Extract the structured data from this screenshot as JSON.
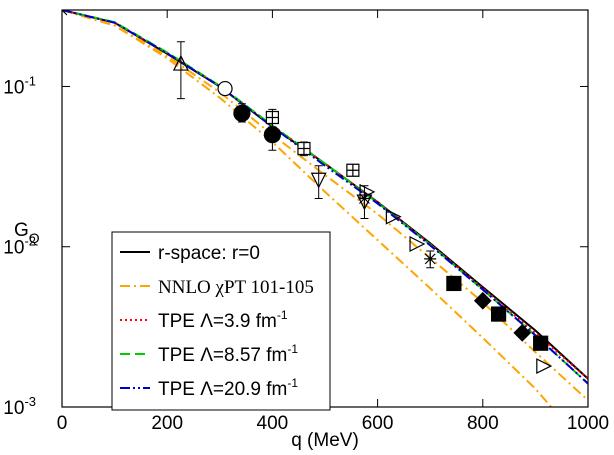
{
  "chart_data": {
    "type": "line",
    "x_label": "q (MeV)",
    "y_label": "G",
    "y_label_sub": "Q",
    "xlim": [
      0,
      1000
    ],
    "ylim": [
      0.001,
      0.3
    ],
    "log_y": true,
    "xticks": [
      0,
      200,
      400,
      600,
      800,
      1000
    ],
    "yticks": [
      {
        "value": 0.001,
        "label": "10",
        "exponent": "-3"
      },
      {
        "value": 0.01,
        "label": "10",
        "exponent": "-2"
      },
      {
        "value": 0.1,
        "label": "10",
        "exponent": "-1"
      }
    ],
    "series": [
      {
        "name": "r-space: r=0",
        "color": "#000000",
        "dash": "solid",
        "x": [
          0,
          100,
          200,
          300,
          400,
          500,
          600,
          700,
          800,
          900,
          1000
        ],
        "values": [
          0.3,
          0.25,
          0.16,
          0.1,
          0.056,
          0.033,
          0.019,
          0.0105,
          0.0056,
          0.003,
          0.0015
        ]
      },
      {
        "name": "NNLO χPT 101-105",
        "color": "#ffa500",
        "dash": "dashdot",
        "x": [
          0,
          100,
          200,
          300,
          400,
          500,
          600,
          700,
          800,
          900,
          1000
        ],
        "values": [
          0.3,
          0.24,
          0.155,
          0.092,
          0.05,
          0.028,
          0.016,
          0.0085,
          0.0045,
          0.0022,
          0.0011
        ]
      },
      {
        "name": "NNLO χPT 101-105",
        "color": "#ffa500",
        "dash": "dashdot",
        "legend": false,
        "x": [
          0,
          100,
          200,
          300,
          400,
          500,
          600,
          700,
          800,
          900,
          930
        ],
        "values": [
          0.3,
          0.24,
          0.15,
          0.085,
          0.045,
          0.022,
          0.011,
          0.0055,
          0.0027,
          0.0013,
          0.001
        ]
      },
      {
        "name": "TPE Λ=3.9 fm",
        "name_exponent": "-1",
        "color": "#ff0000",
        "dash": "dotted",
        "x": [
          0,
          100,
          200,
          300,
          400,
          500,
          600,
          700,
          800,
          900,
          1000
        ],
        "values": [
          0.3,
          0.25,
          0.162,
          0.1,
          0.057,
          0.033,
          0.019,
          0.0104,
          0.0055,
          0.0029,
          0.0015
        ]
      },
      {
        "name": "TPE Λ=8.57 fm",
        "name_exponent": "-1",
        "color": "#00cc00",
        "dash": "dashed",
        "x": [
          0,
          100,
          200,
          300,
          400,
          500,
          600,
          700,
          800,
          900,
          1000
        ],
        "values": [
          0.3,
          0.252,
          0.163,
          0.101,
          0.057,
          0.033,
          0.0188,
          0.0103,
          0.0054,
          0.0028,
          0.0014
        ]
      },
      {
        "name": "TPE Λ=20.9 fm",
        "name_exponent": "-1",
        "color": "#0000cc",
        "dash": "dashdotdot",
        "x": [
          0,
          100,
          200,
          300,
          400,
          500,
          600,
          700,
          800,
          900,
          1000
        ],
        "values": [
          0.3,
          0.25,
          0.161,
          0.1,
          0.056,
          0.032,
          0.0186,
          0.0102,
          0.0054,
          0.0028,
          0.0014
        ]
      }
    ],
    "points": [
      {
        "marker": "x",
        "x": [
          0
        ],
        "values": [
          0.3
        ],
        "low": [
          null
        ],
        "high": [
          null
        ]
      },
      {
        "marker": "triangle-up",
        "x": [
          226
        ],
        "values": [
          0.14
        ],
        "low": [
          0.084
        ],
        "high": [
          0.19
        ]
      },
      {
        "marker": "circle-open",
        "x": [
          310
        ],
        "values": [
          0.097
        ],
        "low": [
          null
        ],
        "high": [
          null
        ]
      },
      {
        "marker": "circle",
        "x": [
          342,
          400
        ],
        "values": [
          0.068,
          0.05
        ],
        "low": [
          0.06,
          0.04
        ],
        "high": [
          0.078,
          0.062
        ]
      },
      {
        "marker": "square-plus",
        "x": [
          400,
          460,
          553
        ],
        "values": [
          0.064,
          0.041,
          0.03
        ],
        "low": [
          0.056,
          0.037,
          0.028
        ],
        "high": [
          0.072,
          0.045,
          0.032
        ]
      },
      {
        "marker": "triangle-down",
        "x": [
          488,
          575
        ],
        "values": [
          0.026,
          0.019
        ],
        "low": [
          0.02,
          0.015
        ],
        "high": [
          0.032,
          0.024
        ]
      },
      {
        "marker": "triangle-right",
        "x": [
          580,
          630,
          675,
          916
        ],
        "values": [
          0.022,
          0.0154,
          0.0104,
          0.0018
        ],
        "low": [
          null,
          null,
          null,
          null
        ],
        "high": [
          null,
          null,
          null,
          null
        ]
      },
      {
        "marker": "star",
        "x": [
          575,
          700
        ],
        "values": [
          0.02,
          0.0084
        ],
        "low": [
          null,
          0.0074
        ],
        "high": [
          null,
          0.0094
        ]
      },
      {
        "marker": "square",
        "x": [
          745,
          830,
          910
        ],
        "values": [
          0.0059,
          0.0038,
          0.0025
        ],
        "low": [
          null,
          null,
          null
        ],
        "high": [
          null,
          null,
          null
        ]
      },
      {
        "marker": "diamond",
        "x": [
          800,
          875
        ],
        "values": [
          0.0046,
          0.0029
        ],
        "low": [
          null,
          null
        ],
        "high": [
          null,
          null
        ]
      }
    ]
  }
}
